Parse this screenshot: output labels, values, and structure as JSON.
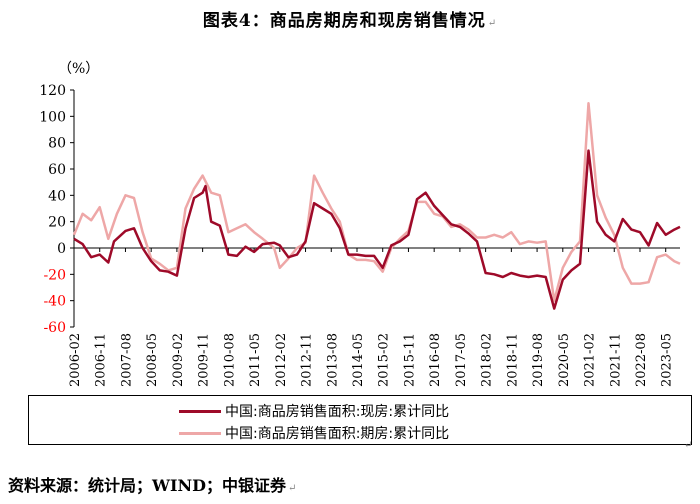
{
  "figure_title": "图表4：商品房期房和现房销售情况",
  "para_mark": "↵",
  "source": "资料来源：统计局；WIND；中银证券",
  "chart_data": {
    "type": "line",
    "title": "图表4：商品房期房和现房销售情况",
    "ylabel": "（%）",
    "xlabel": "",
    "ylim": [
      -60,
      120
    ],
    "yticks": [
      -60,
      -40,
      -20,
      0,
      20,
      40,
      60,
      80,
      100,
      120
    ],
    "x_start": "2006-02",
    "x_end": "2023-10",
    "tick_labels": [
      "2006-02",
      "2006-11",
      "2007-08",
      "2008-05",
      "2009-02",
      "2009-11",
      "2010-08",
      "2011-05",
      "2012-02",
      "2012-11",
      "2013-08",
      "2014-05",
      "2015-02",
      "2015-11",
      "2016-08",
      "2017-05",
      "2018-02",
      "2018-11",
      "2019-08",
      "2020-05",
      "2021-02",
      "2021-11",
      "2022-08",
      "2023-05"
    ],
    "legend_position": "bottom",
    "grid": false,
    "series": [
      {
        "name": "中国:商品房销售面积:现房:累计同比",
        "color": "#9e0a29",
        "points": [
          [
            "2006-02",
            7
          ],
          [
            "2006-05",
            3
          ],
          [
            "2006-08",
            -7
          ],
          [
            "2006-11",
            -5
          ],
          [
            "2007-02",
            -11
          ],
          [
            "2007-04",
            5
          ],
          [
            "2007-08",
            13
          ],
          [
            "2007-11",
            15
          ],
          [
            "2008-02",
            0
          ],
          [
            "2008-05",
            -10
          ],
          [
            "2008-08",
            -17
          ],
          [
            "2008-11",
            -18
          ],
          [
            "2009-02",
            -21
          ],
          [
            "2009-05",
            15
          ],
          [
            "2009-08",
            38
          ],
          [
            "2009-11",
            42
          ],
          [
            "2009-12",
            47
          ],
          [
            "2010-02",
            20
          ],
          [
            "2010-05",
            17
          ],
          [
            "2010-08",
            -5
          ],
          [
            "2010-11",
            -6
          ],
          [
            "2011-02",
            1
          ],
          [
            "2011-05",
            -3
          ],
          [
            "2011-08",
            3
          ],
          [
            "2011-12",
            4
          ],
          [
            "2012-02",
            2
          ],
          [
            "2012-05",
            -7
          ],
          [
            "2012-08",
            -5
          ],
          [
            "2012-11",
            5
          ],
          [
            "2013-02",
            34
          ],
          [
            "2013-05",
            30
          ],
          [
            "2013-08",
            26
          ],
          [
            "2013-11",
            15
          ],
          [
            "2014-02",
            -5
          ],
          [
            "2014-05",
            -5
          ],
          [
            "2014-08",
            -6
          ],
          [
            "2014-11",
            -6
          ],
          [
            "2015-02",
            -15
          ],
          [
            "2015-05",
            2
          ],
          [
            "2015-08",
            5
          ],
          [
            "2015-11",
            10
          ],
          [
            "2016-02",
            37
          ],
          [
            "2016-05",
            42
          ],
          [
            "2016-08",
            32
          ],
          [
            "2016-11",
            25
          ],
          [
            "2017-02",
            18
          ],
          [
            "2017-05",
            16
          ],
          [
            "2017-08",
            11
          ],
          [
            "2017-11",
            5
          ],
          [
            "2018-02",
            -19
          ],
          [
            "2018-05",
            -20
          ],
          [
            "2018-08",
            -22
          ],
          [
            "2018-11",
            -19
          ],
          [
            "2019-02",
            -21
          ],
          [
            "2019-05",
            -22
          ],
          [
            "2019-08",
            -21
          ],
          [
            "2019-11",
            -22
          ],
          [
            "2020-02",
            -46
          ],
          [
            "2020-05",
            -24
          ],
          [
            "2020-08",
            -17
          ],
          [
            "2020-11",
            -12
          ],
          [
            "2021-02",
            74
          ],
          [
            "2021-05",
            20
          ],
          [
            "2021-08",
            10
          ],
          [
            "2021-11",
            5
          ],
          [
            "2022-02",
            22
          ],
          [
            "2022-05",
            14
          ],
          [
            "2022-08",
            12
          ],
          [
            "2022-11",
            2
          ],
          [
            "2023-02",
            19
          ],
          [
            "2023-05",
            10
          ],
          [
            "2023-08",
            14
          ],
          [
            "2023-10",
            16
          ]
        ]
      },
      {
        "name": "中国:商品房销售面积:期房:累计同比",
        "color": "#eea7a7",
        "points": [
          [
            "2006-02",
            10
          ],
          [
            "2006-05",
            26
          ],
          [
            "2006-08",
            21
          ],
          [
            "2006-11",
            31
          ],
          [
            "2007-02",
            7
          ],
          [
            "2007-05",
            26
          ],
          [
            "2007-08",
            40
          ],
          [
            "2007-11",
            38
          ],
          [
            "2008-02",
            12
          ],
          [
            "2008-05",
            -8
          ],
          [
            "2008-08",
            -12
          ],
          [
            "2008-11",
            -17
          ],
          [
            "2009-02",
            -15
          ],
          [
            "2009-05",
            30
          ],
          [
            "2009-08",
            45
          ],
          [
            "2009-11",
            55
          ],
          [
            "2010-02",
            42
          ],
          [
            "2010-05",
            40
          ],
          [
            "2010-08",
            12
          ],
          [
            "2010-11",
            15
          ],
          [
            "2011-02",
            18
          ],
          [
            "2011-05",
            12
          ],
          [
            "2011-08",
            7
          ],
          [
            "2011-12",
            0
          ],
          [
            "2012-02",
            -15
          ],
          [
            "2012-05",
            -8
          ],
          [
            "2012-08",
            0
          ],
          [
            "2012-11",
            4
          ],
          [
            "2013-02",
            55
          ],
          [
            "2013-05",
            42
          ],
          [
            "2013-08",
            30
          ],
          [
            "2013-11",
            20
          ],
          [
            "2014-02",
            -5
          ],
          [
            "2014-05",
            -9
          ],
          [
            "2014-08",
            -9
          ],
          [
            "2014-11",
            -10
          ],
          [
            "2015-02",
            -18
          ],
          [
            "2015-05",
            0
          ],
          [
            "2015-08",
            7
          ],
          [
            "2015-11",
            13
          ],
          [
            "2016-02",
            35
          ],
          [
            "2016-05",
            35
          ],
          [
            "2016-08",
            26
          ],
          [
            "2016-11",
            24
          ],
          [
            "2017-02",
            16
          ],
          [
            "2017-05",
            18
          ],
          [
            "2017-08",
            14
          ],
          [
            "2017-11",
            8
          ],
          [
            "2018-02",
            8
          ],
          [
            "2018-05",
            10
          ],
          [
            "2018-08",
            8
          ],
          [
            "2018-11",
            12
          ],
          [
            "2019-02",
            3
          ],
          [
            "2019-05",
            5
          ],
          [
            "2019-08",
            4
          ],
          [
            "2019-11",
            5
          ],
          [
            "2020-02",
            -40
          ],
          [
            "2020-05",
            -15
          ],
          [
            "2020-08",
            -3
          ],
          [
            "2020-11",
            5
          ],
          [
            "2021-02",
            110
          ],
          [
            "2021-05",
            40
          ],
          [
            "2021-08",
            23
          ],
          [
            "2021-11",
            10
          ],
          [
            "2022-02",
            -15
          ],
          [
            "2022-05",
            -27
          ],
          [
            "2022-08",
            -27
          ],
          [
            "2022-11",
            -26
          ],
          [
            "2023-02",
            -7
          ],
          [
            "2023-05",
            -5
          ],
          [
            "2023-08",
            -10
          ],
          [
            "2023-10",
            -12
          ]
        ]
      }
    ]
  }
}
